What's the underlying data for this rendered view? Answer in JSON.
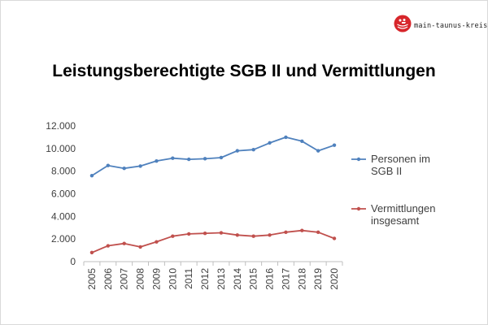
{
  "header": {
    "brand": "main-taunus-kreis",
    "logo_icon": "coat-of-arms-icon",
    "brand_color": "#d7262b"
  },
  "title": "Leistungsberechtigte SGB II und Vermittlungen",
  "chart_data": {
    "type": "line",
    "title": "",
    "xlabel": "",
    "ylabel": "",
    "x": [
      "2005",
      "2006",
      "2007",
      "2008",
      "2009",
      "2010",
      "2011",
      "2012",
      "2013",
      "2014",
      "2015",
      "2016",
      "2017",
      "2018",
      "2019",
      "2020"
    ],
    "ylim": [
      0,
      12000
    ],
    "y_ticks": [
      0,
      2000,
      4000,
      6000,
      8000,
      10000,
      12000
    ],
    "y_tick_labels": [
      "0",
      "2.000",
      "4.000",
      "6.000",
      "8.000",
      "10.000",
      "12.000"
    ],
    "grid": false,
    "legend_position": "right",
    "series": [
      {
        "name_lines": [
          "Personen im",
          "SGB II"
        ],
        "color": "#4f81bd",
        "values": [
          7600,
          8500,
          8250,
          8450,
          8900,
          9150,
          9050,
          9100,
          9200,
          9800,
          9900,
          10500,
          11000,
          10650,
          9800,
          10300
        ]
      },
      {
        "name_lines": [
          "Vermittlungen",
          "insgesamt"
        ],
        "color": "#c0504d",
        "values": [
          800,
          1400,
          1600,
          1300,
          1750,
          2250,
          2450,
          2500,
          2550,
          2350,
          2250,
          2350,
          2600,
          2750,
          2600,
          2050
        ]
      }
    ]
  }
}
